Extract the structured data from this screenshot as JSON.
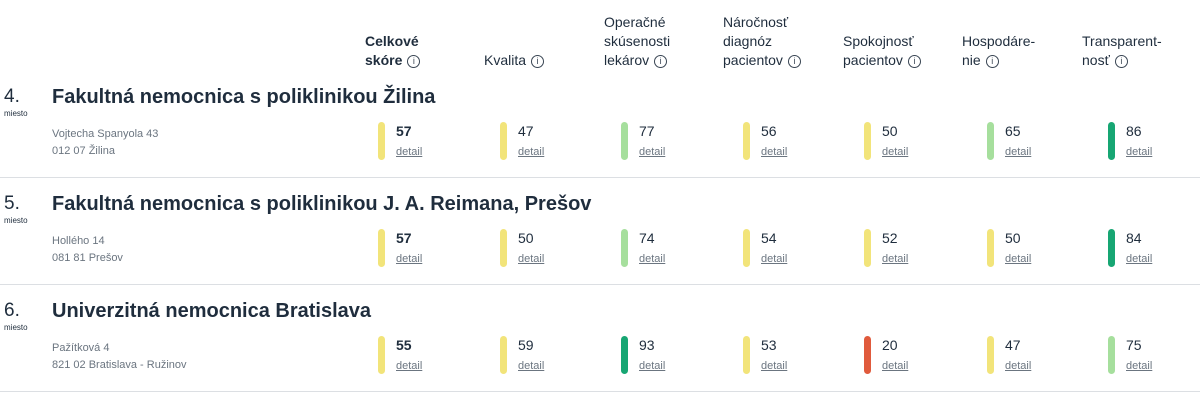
{
  "colors": {
    "yellow": "#f2e47a",
    "light_green": "#a6df9d",
    "dark_green": "#17a673",
    "red": "#e05a3c"
  },
  "columns": [
    {
      "lines": [
        "Celkové",
        "skóre"
      ],
      "bold": true
    },
    {
      "lines": [
        "Kvalita"
      ],
      "bold": false
    },
    {
      "lines": [
        "Operačné",
        "skúsenosti",
        "lekárov"
      ],
      "bold": false
    },
    {
      "lines": [
        "Náročnosť",
        "diagnóz",
        "pacientov"
      ],
      "bold": false
    },
    {
      "lines": [
        "Spokojnosť",
        "pacientov"
      ],
      "bold": false
    },
    {
      "lines": [
        "Hospodáre-",
        "nie"
      ],
      "bold": false
    },
    {
      "lines": [
        "Transparent-",
        "nosť"
      ],
      "bold": false
    }
  ],
  "info_icon": "info-icon",
  "detail_label": "detail",
  "rows": [
    {
      "rank": "4.",
      "rank_label": "miesto",
      "name": "Fakultná nemocnica s poliklinikou Žilina",
      "address_line1": "Vojtecha Spanyola 43",
      "address_line2": "012 07 Žilina",
      "metrics": [
        {
          "value": "57",
          "color": "yellow"
        },
        {
          "value": "47",
          "color": "yellow"
        },
        {
          "value": "77",
          "color": "light_green"
        },
        {
          "value": "56",
          "color": "yellow"
        },
        {
          "value": "50",
          "color": "yellow"
        },
        {
          "value": "65",
          "color": "light_green"
        },
        {
          "value": "86",
          "color": "dark_green"
        }
      ]
    },
    {
      "rank": "5.",
      "rank_label": "miesto",
      "name": "Fakultná nemocnica s poliklinikou J. A. Reimana, Prešov",
      "address_line1": "Hollého 14",
      "address_line2": "081 81 Prešov",
      "metrics": [
        {
          "value": "57",
          "color": "yellow"
        },
        {
          "value": "50",
          "color": "yellow"
        },
        {
          "value": "74",
          "color": "light_green"
        },
        {
          "value": "54",
          "color": "yellow"
        },
        {
          "value": "52",
          "color": "yellow"
        },
        {
          "value": "50",
          "color": "yellow"
        },
        {
          "value": "84",
          "color": "dark_green"
        }
      ]
    },
    {
      "rank": "6.",
      "rank_label": "miesto",
      "name": "Univerzitná nemocnica Bratislava",
      "address_line1": "Pažítková 4",
      "address_line2": "821 02 Bratislava - Ružinov",
      "metrics": [
        {
          "value": "55",
          "color": "yellow"
        },
        {
          "value": "59",
          "color": "yellow"
        },
        {
          "value": "93",
          "color": "dark_green"
        },
        {
          "value": "53",
          "color": "yellow"
        },
        {
          "value": "20",
          "color": "red"
        },
        {
          "value": "47",
          "color": "yellow"
        },
        {
          "value": "75",
          "color": "light_green"
        }
      ]
    }
  ]
}
